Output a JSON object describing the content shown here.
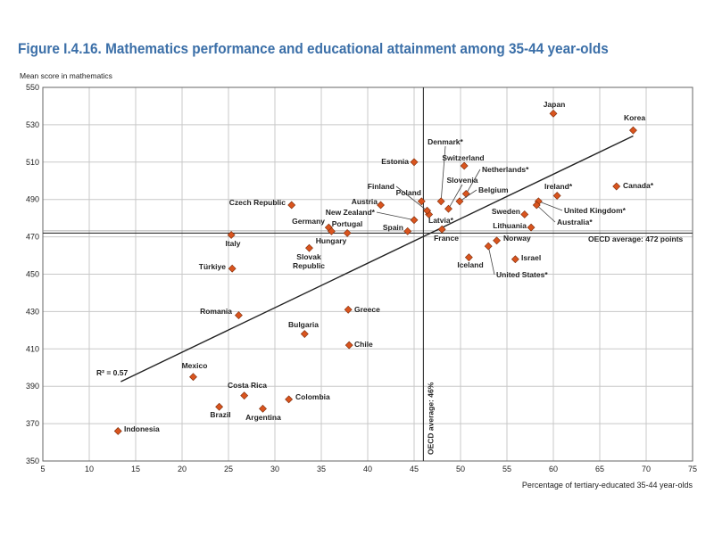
{
  "chart_data": {
    "type": "scatter",
    "title": "Figure I.4.16. Mathematics performance and educational attainment among 35-44 year-olds",
    "ylabel": "Mean score in mathematics",
    "xlabel": "Percentage of tertiary-educated 35-44 year-olds",
    "xlim": [
      5,
      75
    ],
    "ylim": [
      350,
      550
    ],
    "xticks": [
      5,
      10,
      15,
      20,
      25,
      30,
      35,
      40,
      45,
      50,
      55,
      60,
      65,
      70,
      75
    ],
    "yticks": [
      350,
      370,
      390,
      410,
      430,
      450,
      470,
      490,
      510,
      530,
      550
    ],
    "grid": true,
    "marker_color": "#d9541e",
    "title_color": "#3b6fa8",
    "oecd_avg_y": 472,
    "oecd_avg_y_label": "OECD average: 472 points",
    "oecd_avg_x": 46,
    "oecd_avg_x_label": "OECD average: 46%",
    "trendline": {
      "x": [
        13.4,
        68.6
      ],
      "y": [
        392.5,
        524
      ],
      "r2_label": "R² = 0.57"
    },
    "points": [
      {
        "name": "Japan",
        "x": 60.0,
        "y": 536
      },
      {
        "name": "Korea",
        "x": 68.6,
        "y": 527
      },
      {
        "name": "Canada*",
        "x": 66.8,
        "y": 497
      },
      {
        "name": "Ireland*",
        "x": 60.4,
        "y": 492
      },
      {
        "name": "United Kingdom*",
        "x": 58.4,
        "y": 489
      },
      {
        "name": "Australia*",
        "x": 58.2,
        "y": 487
      },
      {
        "name": "Sweden",
        "x": 56.9,
        "y": 482
      },
      {
        "name": "Lithuania",
        "x": 57.6,
        "y": 475
      },
      {
        "name": "Norway",
        "x": 53.9,
        "y": 468
      },
      {
        "name": "United States*",
        "x": 53.0,
        "y": 465
      },
      {
        "name": "Israel",
        "x": 55.9,
        "y": 458
      },
      {
        "name": "Iceland",
        "x": 50.9,
        "y": 459
      },
      {
        "name": "France",
        "x": 48.0,
        "y": 474
      },
      {
        "name": "Latvia*",
        "x": 46.6,
        "y": 482
      },
      {
        "name": "Finland",
        "x": 46.4,
        "y": 484
      },
      {
        "name": "Poland",
        "x": 45.8,
        "y": 489
      },
      {
        "name": "Denmark*",
        "x": 47.9,
        "y": 489
      },
      {
        "name": "Slovenia",
        "x": 48.7,
        "y": 485
      },
      {
        "name": "Switzerland",
        "x": 50.4,
        "y": 508
      },
      {
        "name": "Netherlands*",
        "x": 50.6,
        "y": 493
      },
      {
        "name": "Belgium",
        "x": 49.9,
        "y": 489
      },
      {
        "name": "Estonia",
        "x": 45.0,
        "y": 510
      },
      {
        "name": "New Zealand*",
        "x": 45.0,
        "y": 479
      },
      {
        "name": "Spain",
        "x": 44.3,
        "y": 473
      },
      {
        "name": "Austria",
        "x": 41.4,
        "y": 487
      },
      {
        "name": "Czech Republic",
        "x": 31.8,
        "y": 487
      },
      {
        "name": "Germany",
        "x": 35.8,
        "y": 475
      },
      {
        "name": "Hungary",
        "x": 36.1,
        "y": 473
      },
      {
        "name": "Portugal",
        "x": 37.8,
        "y": 472
      },
      {
        "name": "Slovak Republic",
        "x": 33.7,
        "y": 464
      },
      {
        "name": "Italy",
        "x": 25.3,
        "y": 471
      },
      {
        "name": "Türkiye",
        "x": 25.4,
        "y": 453
      },
      {
        "name": "Romania",
        "x": 26.1,
        "y": 428
      },
      {
        "name": "Bulgaria",
        "x": 33.2,
        "y": 418
      },
      {
        "name": "Greece",
        "x": 37.9,
        "y": 431
      },
      {
        "name": "Chile",
        "x": 38.0,
        "y": 412
      },
      {
        "name": "Mexico",
        "x": 21.2,
        "y": 395
      },
      {
        "name": "Costa Rica",
        "x": 26.7,
        "y": 385
      },
      {
        "name": "Colombia",
        "x": 31.5,
        "y": 383
      },
      {
        "name": "Argentina",
        "x": 28.7,
        "y": 378
      },
      {
        "name": "Brazil",
        "x": 24.0,
        "y": 379
      },
      {
        "name": "Indonesia",
        "x": 13.1,
        "y": 366
      }
    ]
  }
}
